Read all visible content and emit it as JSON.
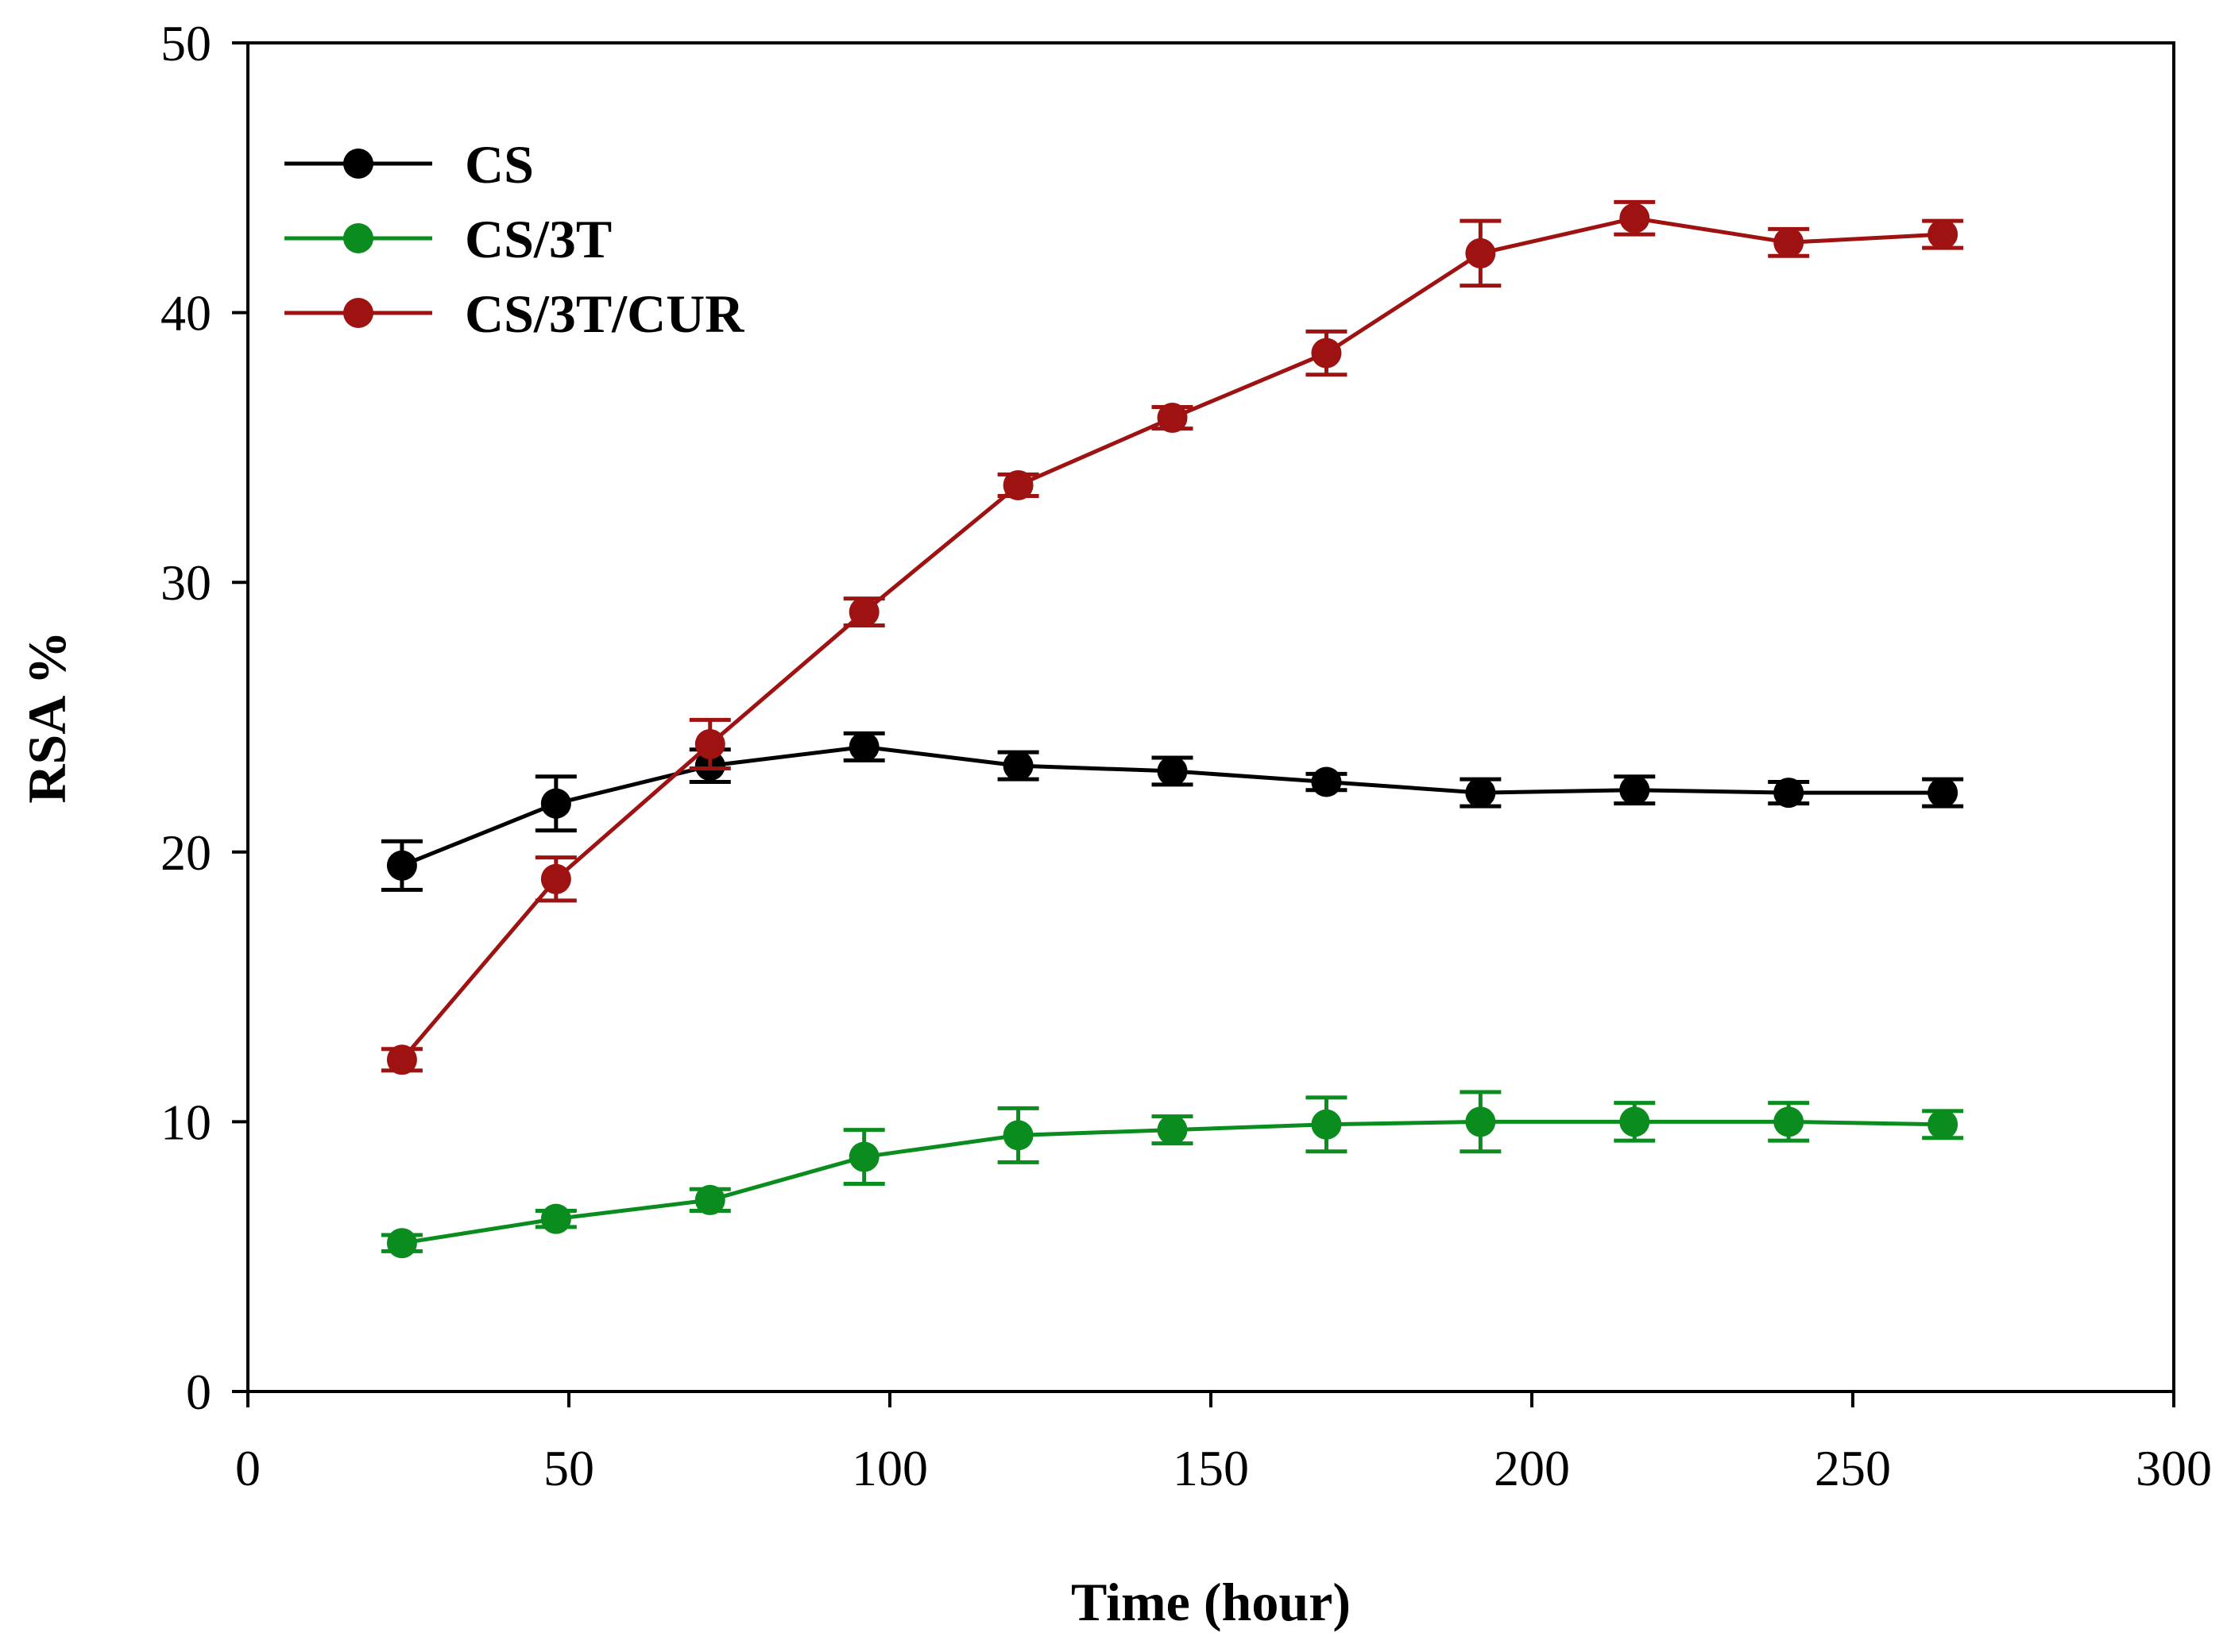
{
  "chart_data": {
    "type": "line",
    "title": "",
    "xlabel": "Time (hour)",
    "ylabel": "RSA %",
    "xlim": [
      0,
      300
    ],
    "ylim": [
      0,
      50
    ],
    "xticks": [
      0,
      50,
      100,
      150,
      200,
      250,
      300
    ],
    "yticks": [
      0,
      10,
      20,
      30,
      40,
      50
    ],
    "xtick_labels": [
      "0",
      "50",
      "100",
      "150",
      "200",
      "250",
      "300"
    ],
    "ytick_labels": [
      "0",
      "10",
      "20",
      "30",
      "40",
      "50"
    ],
    "grid": false,
    "legend_position": "top-left",
    "x": [
      24,
      48,
      72,
      96,
      120,
      144,
      168,
      192,
      216,
      240,
      264
    ],
    "series": [
      {
        "name": "CS",
        "color": "#000000",
        "values": [
          19.5,
          21.8,
          23.2,
          23.9,
          23.2,
          23.0,
          22.6,
          22.2,
          22.3,
          22.2,
          22.2
        ],
        "errors": [
          0.9,
          1.0,
          0.6,
          0.5,
          0.5,
          0.5,
          0.3,
          0.5,
          0.5,
          0.4,
          0.5
        ]
      },
      {
        "name": "CS/3T",
        "color": "#0a8c1e",
        "values": [
          5.5,
          6.4,
          7.1,
          8.7,
          9.5,
          9.7,
          9.9,
          10.0,
          10.0,
          10.0,
          9.9
        ],
        "errors": [
          0.3,
          0.3,
          0.4,
          1.0,
          1.0,
          0.5,
          1.0,
          1.1,
          0.7,
          0.7,
          0.5
        ]
      },
      {
        "name": "CS/3T/CUR",
        "color": "#9e1212",
        "values": [
          12.3,
          19.0,
          24.0,
          28.9,
          33.6,
          36.1,
          38.5,
          42.2,
          43.5,
          42.6,
          42.9
        ],
        "errors": [
          0.4,
          0.8,
          0.9,
          0.5,
          0.4,
          0.4,
          0.8,
          1.2,
          0.6,
          0.5,
          0.5
        ]
      }
    ]
  }
}
